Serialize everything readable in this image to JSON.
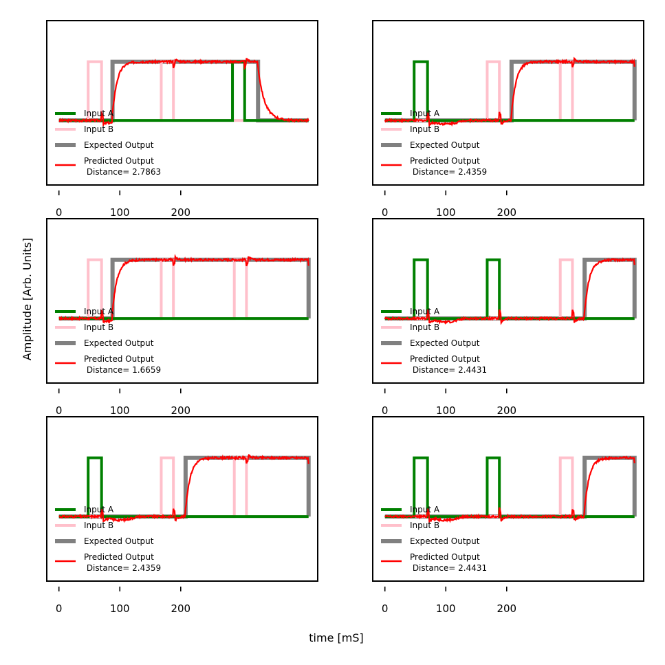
{
  "figure": {
    "xlabel": "time [mS]",
    "ylabel": "Amplitude [Arb. Units]"
  },
  "chart_data": {
    "type": "line",
    "xlim": [
      -20,
      425
    ],
    "ylim": [
      -1.1,
      1.7
    ],
    "xticks": [
      0,
      100,
      200
    ],
    "series_style": {
      "Input A": {
        "color": "#008000"
      },
      "Input B": {
        "color": "#ffc0cb"
      },
      "Expected Output": {
        "color": "#808080"
      },
      "Predicted Output": {
        "color": "#ff0000"
      }
    },
    "panels": [
      {
        "id": "top-left",
        "row": 0,
        "col": 0,
        "pulses_a": [
          [
            285,
            305
          ]
        ],
        "pulses_b": [
          [
            48,
            70
          ],
          [
            168,
            188
          ]
        ],
        "expected_on": [
          [
            88,
            327
          ]
        ],
        "distance_label": " Distance= 2.7863"
      },
      {
        "id": "top-right",
        "row": 0,
        "col": 1,
        "pulses_a": [
          [
            48,
            70
          ]
        ],
        "pulses_b": [
          [
            168,
            188
          ],
          [
            288,
            308
          ]
        ],
        "expected_on": [
          [
            208,
            410
          ]
        ],
        "distance_label": " Distance= 2.4359"
      },
      {
        "id": "middle-left",
        "row": 1,
        "col": 0,
        "pulses_a": [],
        "pulses_b": [
          [
            48,
            70
          ],
          [
            168,
            188
          ],
          [
            288,
            308
          ]
        ],
        "expected_on": [
          [
            88,
            410
          ]
        ],
        "distance_label": " Distance= 1.6659"
      },
      {
        "id": "middle-right",
        "row": 1,
        "col": 1,
        "pulses_a": [
          [
            48,
            70
          ],
          [
            168,
            188
          ]
        ],
        "pulses_b": [
          [
            288,
            308
          ]
        ],
        "expected_on": [
          [
            328,
            410
          ]
        ],
        "distance_label": " Distance= 2.4431"
      },
      {
        "id": "bottom-left",
        "row": 2,
        "col": 0,
        "pulses_a": [
          [
            48,
            70
          ]
        ],
        "pulses_b": [
          [
            168,
            188
          ],
          [
            288,
            308
          ]
        ],
        "expected_on": [
          [
            208,
            410
          ]
        ],
        "distance_label": " Distance= 2.4359"
      },
      {
        "id": "bottom-right",
        "row": 2,
        "col": 1,
        "pulses_a": [
          [
            48,
            70
          ],
          [
            168,
            188
          ]
        ],
        "pulses_b": [
          [
            288,
            308
          ]
        ],
        "expected_on": [
          [
            328,
            410
          ]
        ],
        "distance_label": " Distance= 2.4431"
      }
    ],
    "legend": {
      "placement": "lower-left",
      "entries": [
        {
          "label": "Input A",
          "series": "Input A"
        },
        {
          "label": "Input B",
          "series": "Input B"
        },
        {
          "label": "Expected Output",
          "series": "Expected Output"
        },
        {
          "label": "Predicted Output",
          "series": "Predicted Output"
        }
      ]
    }
  }
}
